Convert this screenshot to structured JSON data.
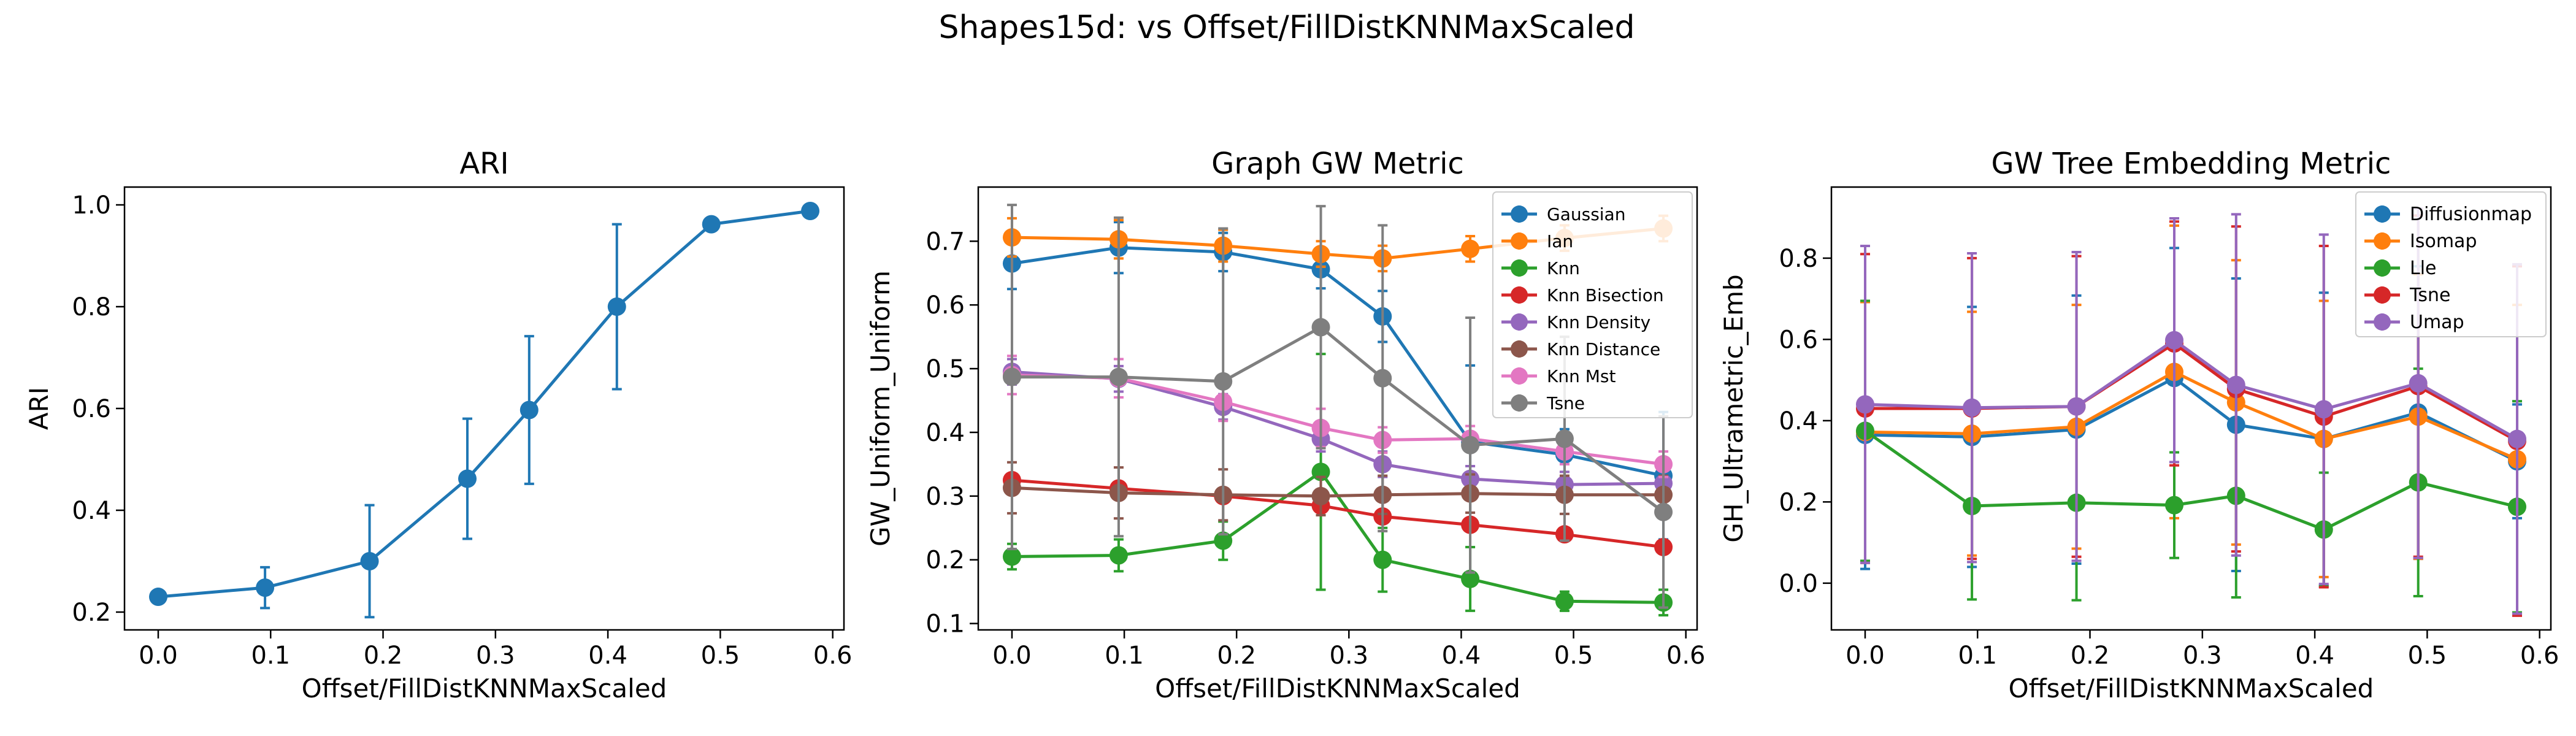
{
  "figure": {
    "suptitle": "Shapes15d: vs Offset/FillDistKNNMaxScaled"
  },
  "chart_data": [
    {
      "type": "line",
      "title": "ARI",
      "xlabel": "Offset/FillDistKNNMaxScaled",
      "ylabel": "ARI",
      "xlim": [
        -0.03,
        0.61
      ],
      "ylim": [
        0.165,
        1.035
      ],
      "xticks": [
        0.0,
        0.1,
        0.2,
        0.3,
        0.4,
        0.5,
        0.6
      ],
      "xtick_labels": [
        "0.0",
        "0.1",
        "0.2",
        "0.3",
        "0.4",
        "0.5",
        "0.6"
      ],
      "yticks": [
        0.2,
        0.4,
        0.6,
        0.8,
        1.0
      ],
      "ytick_labels": [
        "0.2",
        "0.4",
        "0.6",
        "0.8",
        "1.0"
      ],
      "legend": null,
      "x": [
        0.0,
        0.095,
        0.188,
        0.275,
        0.33,
        0.408,
        0.492,
        0.58
      ],
      "series": [
        {
          "name": "",
          "color": "#1f77b4",
          "values": [
            0.23,
            0.248,
            0.3,
            0.462,
            0.597,
            0.8,
            0.962,
            0.988
          ],
          "err": [
            0.0,
            0.04,
            0.11,
            0.118,
            0.145,
            0.162,
            0.0,
            0.0
          ]
        }
      ]
    },
    {
      "type": "line",
      "title": "Graph GW Metric",
      "xlabel": "Offset/FillDistKNNMaxScaled",
      "ylabel": "GW_Uniform_Uniform",
      "xlim": [
        -0.03,
        0.61
      ],
      "ylim": [
        0.09,
        0.785
      ],
      "xticks": [
        0.0,
        0.1,
        0.2,
        0.3,
        0.4,
        0.5,
        0.6
      ],
      "xtick_labels": [
        "0.0",
        "0.1",
        "0.2",
        "0.3",
        "0.4",
        "0.5",
        "0.6"
      ],
      "yticks": [
        0.1,
        0.2,
        0.3,
        0.4,
        0.5,
        0.6,
        0.7
      ],
      "ytick_labels": [
        "0.1",
        "0.2",
        "0.3",
        "0.4",
        "0.5",
        "0.6",
        "0.7"
      ],
      "legend": "top-right",
      "x": [
        0.0,
        0.095,
        0.188,
        0.275,
        0.33,
        0.408,
        0.492,
        0.58
      ],
      "series": [
        {
          "name": "Gaussian",
          "color": "#1f77b4",
          "values": [
            0.665,
            0.69,
            0.683,
            0.656,
            0.582,
            0.385,
            0.365,
            0.332
          ],
          "err": [
            0.04,
            0.04,
            0.03,
            0.03,
            0.04,
            0.12,
            0.04,
            0.1
          ]
        },
        {
          "name": "Ian",
          "color": "#ff7f0e",
          "values": [
            0.706,
            0.703,
            0.693,
            0.68,
            0.673,
            0.688,
            0.705,
            0.72
          ],
          "err": [
            0.03,
            0.03,
            0.025,
            0.02,
            0.02,
            0.02,
            0.02,
            0.02
          ]
        },
        {
          "name": "Knn",
          "color": "#2ca02c",
          "values": [
            0.205,
            0.207,
            0.23,
            0.338,
            0.2,
            0.17,
            0.135,
            0.133
          ],
          "err": [
            0.02,
            0.025,
            0.03,
            0.185,
            0.05,
            0.05,
            0.015,
            0.02
          ]
        },
        {
          "name": "Knn Bisection",
          "color": "#d62728",
          "values": [
            0.325,
            0.312,
            0.3,
            0.285,
            0.268,
            0.255,
            0.24,
            0.22
          ],
          "err": [
            0.01,
            0.01,
            0.01,
            0.01,
            0.01,
            0.01,
            0.01,
            0.01
          ]
        },
        {
          "name": "Knn Density",
          "color": "#9467bd",
          "values": [
            0.495,
            0.484,
            0.44,
            0.39,
            0.35,
            0.327,
            0.318,
            0.32
          ],
          "err": [
            0.02,
            0.02,
            0.02,
            0.02,
            0.02,
            0.02,
            0.02,
            0.02
          ]
        },
        {
          "name": "Knn Distance",
          "color": "#8c564b",
          "values": [
            0.313,
            0.305,
            0.302,
            0.3,
            0.302,
            0.304,
            0.302,
            0.302
          ],
          "err": [
            0.04,
            0.04,
            0.04,
            0.03,
            0.03,
            0.03,
            0.03,
            0.03
          ]
        },
        {
          "name": "Knn Mst",
          "color": "#e377c2",
          "values": [
            0.49,
            0.485,
            0.448,
            0.407,
            0.388,
            0.39,
            0.37,
            0.35
          ],
          "err": [
            0.03,
            0.03,
            0.03,
            0.03,
            0.02,
            0.02,
            0.02,
            0.02
          ]
        },
        {
          "name": "Tsne",
          "color": "#7f7f7f",
          "values": [
            0.487,
            0.487,
            0.48,
            0.565,
            0.485,
            0.38,
            0.39,
            0.275
          ],
          "err": [
            0.27,
            0.25,
            0.24,
            0.19,
            0.24,
            0.2,
            0.16,
            0.15
          ]
        }
      ]
    },
    {
      "type": "line",
      "title": "GW Tree Embedding Metric",
      "xlabel": "Offset/FillDistKNNMaxScaled",
      "ylabel": "GH_Ultrametric_Emb",
      "xlim": [
        -0.03,
        0.61
      ],
      "ylim": [
        -0.115,
        0.975
      ],
      "xticks": [
        0.0,
        0.1,
        0.2,
        0.3,
        0.4,
        0.5,
        0.6
      ],
      "xtick_labels": [
        "0.0",
        "0.1",
        "0.2",
        "0.3",
        "0.4",
        "0.5",
        "0.6"
      ],
      "yticks": [
        0.0,
        0.2,
        0.4,
        0.6,
        0.8
      ],
      "ytick_labels": [
        "0.0",
        "0.2",
        "0.4",
        "0.6",
        "0.8"
      ],
      "legend": "top-right",
      "x": [
        0.0,
        0.095,
        0.188,
        0.275,
        0.33,
        0.408,
        0.492,
        0.58
      ],
      "series": [
        {
          "name": "Diffusionmap",
          "color": "#1f77b4",
          "values": [
            0.365,
            0.36,
            0.378,
            0.505,
            0.39,
            0.355,
            0.42,
            0.3
          ],
          "err": [
            0.33,
            0.32,
            0.33,
            0.32,
            0.36,
            0.36,
            0.36,
            0.14
          ]
        },
        {
          "name": "Isomap",
          "color": "#ff7f0e",
          "values": [
            0.372,
            0.368,
            0.385,
            0.52,
            0.445,
            0.355,
            0.41,
            0.305
          ],
          "err": [
            0.32,
            0.3,
            0.3,
            0.36,
            0.35,
            0.34,
            0.35,
            0.38
          ]
        },
        {
          "name": "Lle",
          "color": "#2ca02c",
          "values": [
            0.375,
            0.19,
            0.198,
            0.192,
            0.215,
            0.132,
            0.248,
            0.188
          ],
          "err": [
            0.32,
            0.23,
            0.24,
            0.13,
            0.25,
            0.14,
            0.28,
            0.26
          ]
        },
        {
          "name": "Tsne",
          "color": "#d62728",
          "values": [
            0.43,
            0.43,
            0.435,
            0.59,
            0.478,
            0.41,
            0.485,
            0.35
          ],
          "err": [
            0.38,
            0.37,
            0.37,
            0.3,
            0.4,
            0.42,
            0.42,
            0.43
          ]
        },
        {
          "name": "Umap",
          "color": "#9467bd",
          "values": [
            0.44,
            0.432,
            0.435,
            0.598,
            0.488,
            0.428,
            0.492,
            0.355
          ],
          "err": [
            0.39,
            0.38,
            0.38,
            0.3,
            0.42,
            0.43,
            0.43,
            0.43
          ]
        }
      ]
    }
  ]
}
